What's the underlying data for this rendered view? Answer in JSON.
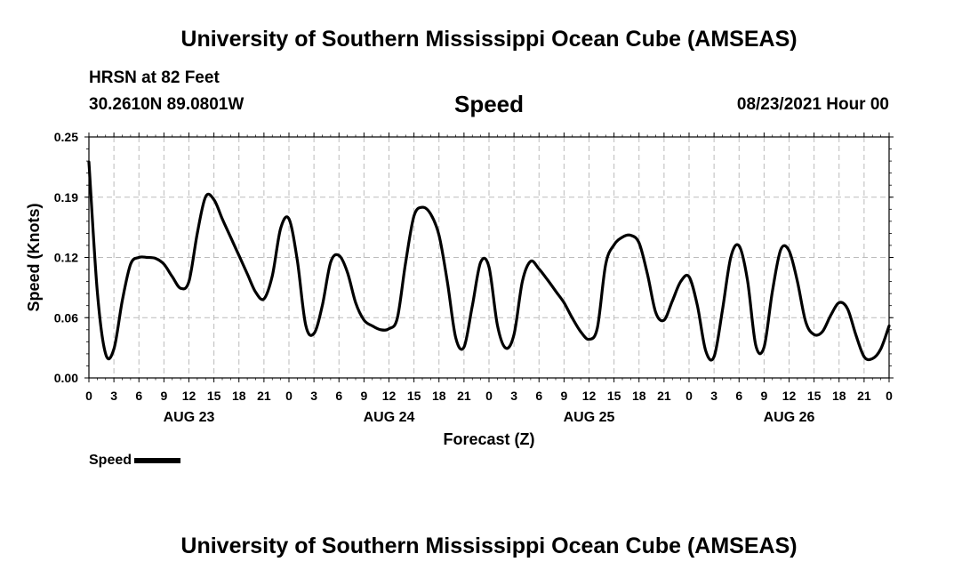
{
  "header": {
    "top_title": "University of Southern Mississippi Ocean Cube (AMSEAS)",
    "station": "HRSN at 82 Feet",
    "coords": "30.2610N  89.0801W",
    "chart_title": "Speed",
    "run_time": "08/23/2021 Hour 00",
    "bottom_title": "University of Southern Mississippi Ocean Cube (AMSEAS)"
  },
  "legend": {
    "label": "Speed",
    "color": "#000000"
  },
  "chart_data": {
    "type": "line",
    "title": "Speed",
    "xlabel": "Forecast (Z)",
    "ylabel": "Speed (Knots)",
    "ylim": [
      0,
      0.25
    ],
    "yticks": [
      "0.00",
      "0.06",
      "0.12",
      "0.19",
      "0.25"
    ],
    "ytick_values": [
      0,
      0.0625,
      0.125,
      0.1875,
      0.25
    ],
    "xlim": [
      0,
      96
    ],
    "xtick_labels": [
      "0",
      "3",
      "6",
      "9",
      "12",
      "15",
      "18",
      "21",
      "0",
      "3",
      "6",
      "9",
      "12",
      "15",
      "18",
      "21",
      "0",
      "3",
      "6",
      "9",
      "12",
      "15",
      "18",
      "21",
      "0",
      "3",
      "6",
      "9",
      "12",
      "15",
      "18",
      "21",
      "0"
    ],
    "day_labels": [
      {
        "label": "AUG 23",
        "hour": 12
      },
      {
        "label": "AUG 24",
        "hour": 36
      },
      {
        "label": "AUG 25",
        "hour": 60
      },
      {
        "label": "AUG 26",
        "hour": 84
      }
    ],
    "grid": true,
    "series": [
      {
        "name": "Speed",
        "hours": [
          0,
          1,
          2,
          3,
          4,
          5,
          6,
          7,
          8,
          9,
          10,
          11,
          12,
          13,
          14,
          15,
          16,
          17,
          18,
          19,
          20,
          21,
          22,
          23,
          24,
          25,
          26,
          27,
          28,
          29,
          30,
          31,
          32,
          33,
          34,
          35,
          36,
          37,
          38,
          39,
          40,
          41,
          42,
          43,
          44,
          45,
          46,
          47,
          48,
          49,
          50,
          51,
          52,
          53,
          54,
          55,
          56,
          57,
          58,
          59,
          60,
          61,
          62,
          63,
          64,
          65,
          66,
          67,
          68,
          69,
          70,
          71,
          72,
          73,
          74,
          75,
          76,
          77,
          78,
          79,
          80,
          81,
          82,
          83,
          84,
          85,
          86,
          87,
          88,
          89,
          90,
          91,
          92,
          93,
          94,
          95,
          96
        ],
        "values": [
          0.224,
          0.09,
          0.025,
          0.03,
          0.08,
          0.118,
          0.125,
          0.125,
          0.124,
          0.118,
          0.105,
          0.093,
          0.1,
          0.15,
          0.188,
          0.185,
          0.165,
          0.146,
          0.127,
          0.108,
          0.089,
          0.082,
          0.106,
          0.155,
          0.165,
          0.122,
          0.055,
          0.046,
          0.075,
          0.12,
          0.127,
          0.11,
          0.078,
          0.06,
          0.054,
          0.05,
          0.051,
          0.062,
          0.12,
          0.168,
          0.177,
          0.17,
          0.148,
          0.1,
          0.042,
          0.032,
          0.075,
          0.12,
          0.115,
          0.055,
          0.031,
          0.045,
          0.1,
          0.121,
          0.113,
          0.102,
          0.09,
          0.078,
          0.062,
          0.048,
          0.04,
          0.052,
          0.118,
          0.138,
          0.146,
          0.148,
          0.14,
          0.108,
          0.068,
          0.06,
          0.08,
          0.1,
          0.105,
          0.075,
          0.028,
          0.022,
          0.07,
          0.125,
          0.137,
          0.102,
          0.034,
          0.032,
          0.09,
          0.133,
          0.132,
          0.1,
          0.058,
          0.045,
          0.048,
          0.065,
          0.078,
          0.072,
          0.045,
          0.022,
          0.02,
          0.03,
          0.054
        ]
      }
    ]
  }
}
